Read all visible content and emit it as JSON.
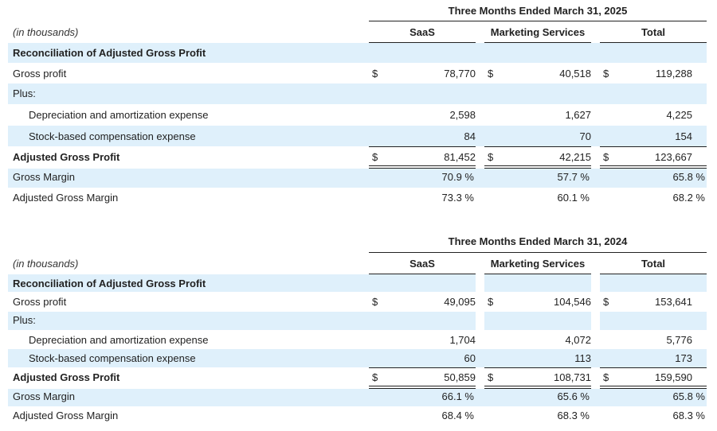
{
  "tables": [
    {
      "period": "Three Months Ended March 31, 2025",
      "units": "(in thousands)",
      "columns": [
        "SaaS",
        "Marketing Services",
        "Total"
      ],
      "section_title": "Reconciliation of Adjusted Gross Profit",
      "gross_profit": {
        "label": "Gross profit",
        "dollar": "$",
        "values": [
          "78,770",
          "40,518",
          "119,288"
        ]
      },
      "plus_label": "Plus:",
      "depreciation": {
        "label": "Depreciation and amortization expense",
        "values": [
          "2,598",
          "1,627",
          "4,225"
        ]
      },
      "stock": {
        "label": "Stock-based compensation expense",
        "values": [
          "84",
          "70",
          "154"
        ]
      },
      "adjusted": {
        "label": "Adjusted Gross Profit",
        "dollar": "$",
        "values": [
          "81,452",
          "42,215",
          "123,667"
        ]
      },
      "gross_margin": {
        "label": "Gross Margin",
        "values": [
          "70.9 %",
          "57.7 %",
          "65.8 %"
        ]
      },
      "adjusted_margin": {
        "label": "Adjusted Gross Margin",
        "values": [
          "73.3 %",
          "60.1 %",
          "68.2 %"
        ]
      }
    },
    {
      "period": "Three Months Ended March 31, 2024",
      "units": "(in thousands)",
      "columns": [
        "SaaS",
        "Marketing Services",
        "Total"
      ],
      "section_title": "Reconciliation of Adjusted Gross Profit",
      "gross_profit": {
        "label": "Gross profit",
        "dollar": "$",
        "values": [
          "49,095",
          "104,546",
          "153,641"
        ]
      },
      "plus_label": "Plus:",
      "depreciation": {
        "label": "Depreciation and amortization expense",
        "values": [
          "1,704",
          "4,072",
          "5,776"
        ]
      },
      "stock": {
        "label": "Stock-based compensation expense",
        "values": [
          "60",
          "113",
          "173"
        ]
      },
      "adjusted": {
        "label": "Adjusted Gross Profit",
        "dollar": "$",
        "values": [
          "50,859",
          "108,731",
          "159,590"
        ]
      },
      "gross_margin": {
        "label": "Gross Margin",
        "values": [
          "66.1 %",
          "65.6 %",
          "65.8 %"
        ]
      },
      "adjusted_margin": {
        "label": "Adjusted Gross Margin",
        "values": [
          "68.4 %",
          "68.3 %",
          "68.3 %"
        ]
      }
    }
  ]
}
